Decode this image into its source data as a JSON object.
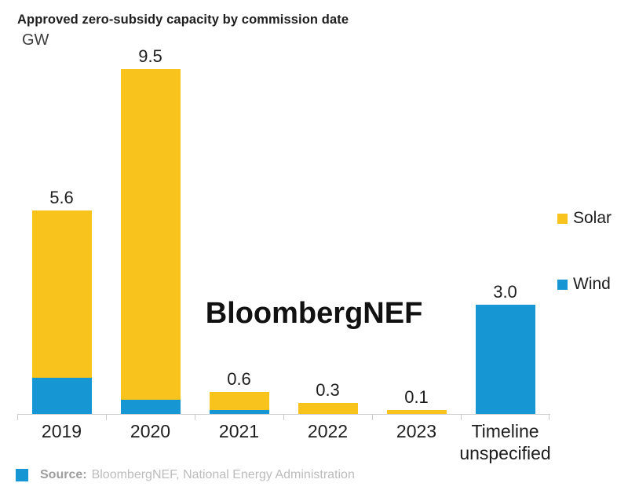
{
  "header": {
    "title": "Approved zero-subsidy capacity by commission date",
    "unit": "GW"
  },
  "watermark": {
    "text": "BloombergNEF"
  },
  "legend": {
    "position": "right",
    "items": [
      {
        "label": "Solar",
        "color": "#F8C31C"
      },
      {
        "label": "Wind",
        "color": "#1697D4"
      }
    ]
  },
  "footer": {
    "source_label": "Source:",
    "source_text": "BloombergNEF, National Energy Administration",
    "swatch_color": "#1697D4"
  },
  "colors": {
    "solar": "#F8C31C",
    "wind": "#1697D4",
    "axis": "#c9c9c9",
    "text": "#1d1d1d"
  },
  "chart_data": {
    "type": "bar",
    "stacked": true,
    "title": "Approved zero-subsidy capacity by commission date",
    "xlabel": "",
    "ylabel": "GW",
    "categories": [
      "2019",
      "2020",
      "2021",
      "2022",
      "2023",
      "Timeline unspecified"
    ],
    "series": [
      {
        "name": "Wind",
        "color": "#1697D4",
        "values": [
          1.0,
          0.4,
          0.1,
          0,
          0,
          3.0
        ]
      },
      {
        "name": "Solar",
        "color": "#F8C31C",
        "values": [
          4.6,
          9.1,
          0.5,
          0.3,
          0.1,
          0
        ]
      }
    ],
    "totals": [
      5.6,
      9.5,
      0.6,
      0.3,
      0.1,
      3.0
    ],
    "total_labels": [
      "5.6",
      "9.5",
      "0.6",
      "0.3",
      "0.1",
      "3.0"
    ],
    "ylim": [
      0,
      9.5
    ],
    "grid": false,
    "legend_position": "right",
    "annotations": [
      "BloombergNEF"
    ]
  }
}
